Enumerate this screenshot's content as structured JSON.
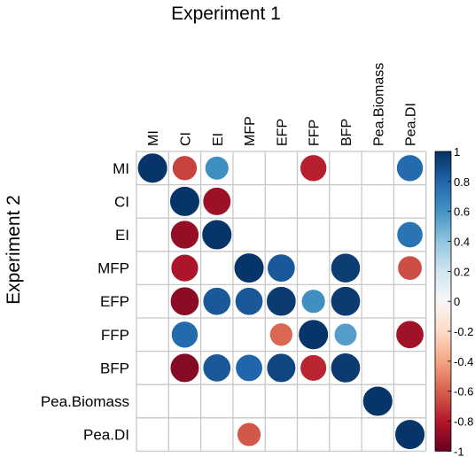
{
  "chart_data": {
    "type": "heatmap",
    "subtype": "correlation-circle-matrix",
    "title_top": "Experiment 1",
    "title_left": "Experiment 2",
    "columns": [
      "MI",
      "CI",
      "EI",
      "MFP",
      "EFP",
      "FFP",
      "BFP",
      "Pea.Biomass",
      "Pea.DI"
    ],
    "rows": [
      "MI",
      "CI",
      "EI",
      "MFP",
      "EFP",
      "FFP",
      "BFP",
      "Pea.Biomass",
      "Pea.DI"
    ],
    "values": [
      [
        0.98,
        -0.68,
        0.62,
        null,
        null,
        -0.78,
        null,
        null,
        0.78
      ],
      [
        null,
        0.98,
        -0.86,
        null,
        null,
        null,
        null,
        null,
        null
      ],
      [
        null,
        -0.88,
        0.98,
        null,
        null,
        null,
        null,
        null,
        0.74
      ],
      [
        null,
        -0.82,
        null,
        0.98,
        0.85,
        null,
        0.95,
        null,
        -0.65
      ],
      [
        null,
        -0.9,
        0.85,
        0.85,
        0.96,
        0.62,
        0.96,
        null,
        null
      ],
      [
        null,
        0.78,
        null,
        null,
        -0.58,
        0.98,
        0.56,
        null,
        -0.85
      ],
      [
        null,
        -0.92,
        0.85,
        0.8,
        0.92,
        -0.76,
        0.96,
        null,
        null
      ],
      [
        null,
        null,
        null,
        null,
        null,
        null,
        null,
        0.98,
        null
      ],
      [
        null,
        null,
        null,
        -0.62,
        null,
        null,
        null,
        null,
        0.98
      ]
    ],
    "colorbar": {
      "range": [
        -1,
        1
      ],
      "ticks": [
        "1",
        "0.8",
        "0.6",
        "0.4",
        "0.2",
        "0",
        "-0.2",
        "-0.4",
        "-0.6",
        "-0.8",
        "-1"
      ]
    },
    "colors": {
      "negative_strong": "#67001f",
      "negative_mid": "#d6604d",
      "neutral": "#f7f7f7",
      "positive_mid": "#4393c3",
      "positive_strong": "#053061",
      "grid": "#c8c8c8"
    },
    "grid": true
  }
}
